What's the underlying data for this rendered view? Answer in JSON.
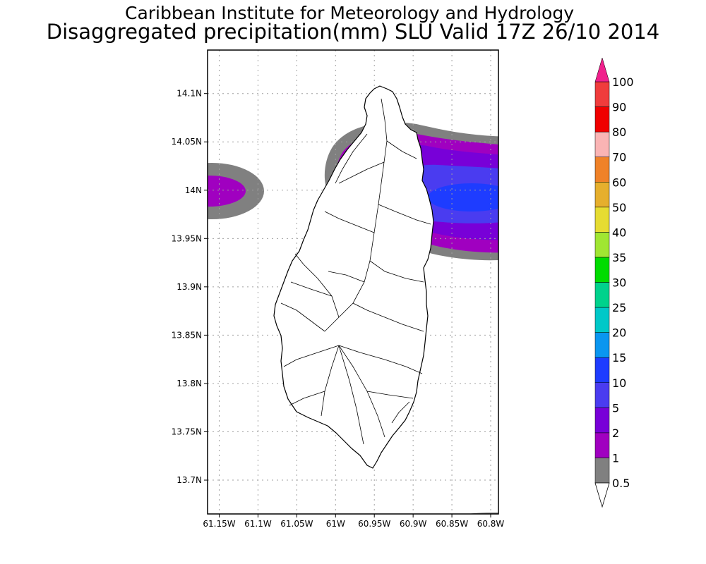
{
  "header": {
    "title": "Caribbean Institute for Meteorology and Hydrology",
    "subtitle": "Disaggregated precipitation(mm) SLU Valid 17Z 26/10 2014"
  },
  "map": {
    "region": "Saint Lucia",
    "lon_range": [
      -61.165,
      -60.79
    ],
    "lat_range": [
      13.665,
      14.145
    ],
    "lon_ticks": [
      {
        "value": -61.15,
        "label": "61.15W"
      },
      {
        "value": -61.1,
        "label": "61.1W"
      },
      {
        "value": -61.05,
        "label": "61.05W"
      },
      {
        "value": -61.0,
        "label": "61W"
      },
      {
        "value": -60.95,
        "label": "60.95W"
      },
      {
        "value": -60.9,
        "label": "60.9W"
      },
      {
        "value": -60.85,
        "label": "60.85W"
      },
      {
        "value": -60.8,
        "label": "60.8W"
      }
    ],
    "lat_ticks": [
      {
        "value": 14.1,
        "label": "14.1N"
      },
      {
        "value": 14.05,
        "label": "14.05N"
      },
      {
        "value": 14.0,
        "label": "14N"
      },
      {
        "value": 13.95,
        "label": "13.95N"
      },
      {
        "value": 13.9,
        "label": "13.9N"
      },
      {
        "value": 13.85,
        "label": "13.85N"
      },
      {
        "value": 13.8,
        "label": "13.8N"
      },
      {
        "value": 13.75,
        "label": "13.75N"
      },
      {
        "value": 13.7,
        "label": "13.7N"
      }
    ],
    "grid": true
  },
  "colorbar": {
    "levels": [
      {
        "label": "0.5",
        "color": "#ffffff"
      },
      {
        "label": "1",
        "color": "#808080"
      },
      {
        "label": "2",
        "color": "#a000c0"
      },
      {
        "label": "5",
        "color": "#7800d8"
      },
      {
        "label": "10",
        "color": "#4a3cf0"
      },
      {
        "label": "15",
        "color": "#1e3cff"
      },
      {
        "label": "20",
        "color": "#0a96f0"
      },
      {
        "label": "25",
        "color": "#00c8c8"
      },
      {
        "label": "30",
        "color": "#00d28c"
      },
      {
        "label": "35",
        "color": "#00dc00"
      },
      {
        "label": "40",
        "color": "#a0e632"
      },
      {
        "label": "50",
        "color": "#e6dc32"
      },
      {
        "label": "60",
        "color": "#e6af2d"
      },
      {
        "label": "70",
        "color": "#f08228"
      },
      {
        "label": "80",
        "color": "#fab4b4"
      },
      {
        "label": "90",
        "color": "#f00000"
      },
      {
        "label": "100",
        "color": "#f03c3c"
      }
    ],
    "over_color": "#f0208c",
    "under_color": "#ffffff"
  }
}
